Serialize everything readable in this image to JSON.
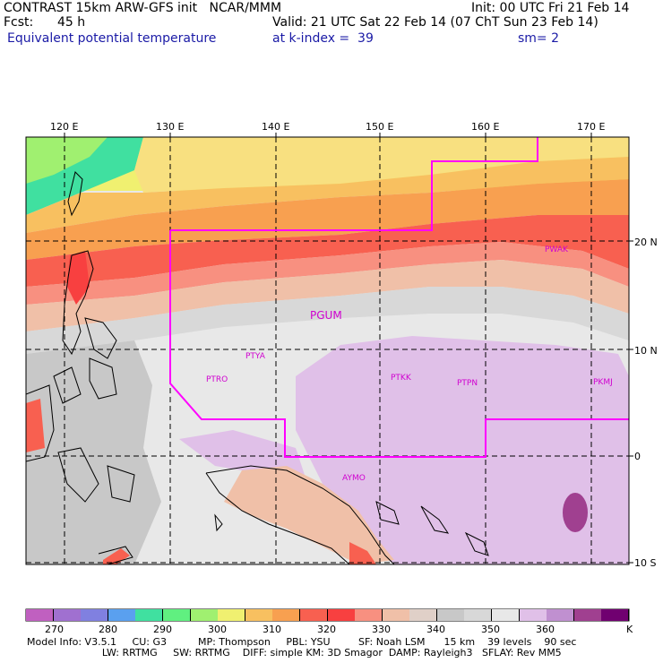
{
  "header": {
    "line1_left": "CONTRAST 15km ARW-GFS init   NCAR/MMM",
    "line1_right": "Init: 00 UTC Fri 21 Feb 14",
    "fcst_label": "Fcst:",
    "fcst_value": "45 h",
    "valid": "Valid: 21 UTC Sat 22 Feb 14 (07 ChT Sun 23 Feb 14)",
    "field_name": "Equivalent potential temperature",
    "level": "at k-index =  39",
    "smoothing": "sm= 2"
  },
  "map": {
    "lon_labels": [
      "120 E",
      "130 E",
      "140 E",
      "150 E",
      "160 E",
      "170 E"
    ],
    "lat_labels": [
      "20 N",
      "10 N",
      "0",
      "10 S"
    ],
    "stations": {
      "pgum": "PGUM",
      "pwak": "PWAK",
      "ptya": "PTYA",
      "ptro": "PTRO",
      "ptkk": "PTKK",
      "ptpn": "PTPN",
      "pkmj": "PKMJ",
      "aymo": "AYMO"
    }
  },
  "colorbar": {
    "colors": [
      "#c060c0",
      "#a070d0",
      "#8080e0",
      "#5aa0ef",
      "#40e0a0",
      "#60f080",
      "#a0f070",
      "#f0f070",
      "#f8c060",
      "#f8a050",
      "#f86050",
      "#f84040",
      "#f89080",
      "#f0c0a8",
      "#e0d0c8",
      "#c8c8c8",
      "#d8d8d8",
      "#e8e8e8",
      "#e0c0e8",
      "#c090d0",
      "#a04090",
      "#700070"
    ],
    "labels": [
      "270",
      "280",
      "290",
      "300",
      "310",
      "320",
      "330",
      "340",
      "350",
      "360"
    ],
    "unit": "K"
  },
  "footer": {
    "line1": "Model Info: V3.5.1     CU: G3          MP: Thompson     PBL: YSU         SF: Noah LSM      15 km    39 levels    90 sec",
    "line2": "                        LW: RRTMG     SW: RRTMG    DIFF: simple KM: 3D Smagor  DAMP: Rayleigh3   SFLAY: Rev MM5"
  }
}
